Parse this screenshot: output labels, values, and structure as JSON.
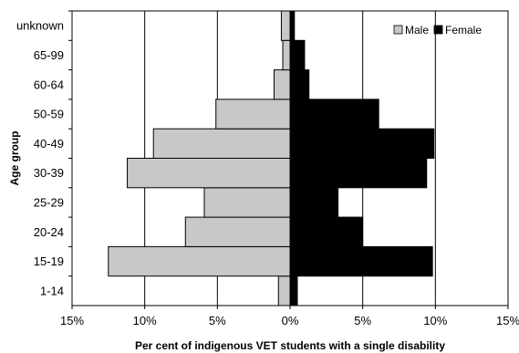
{
  "chart_data": {
    "type": "bar",
    "orientation": "horizontal-population-pyramid",
    "categories": [
      "1-14",
      "15-19",
      "20-24",
      "25-29",
      "30-39",
      "40-49",
      "50-59",
      "60-64",
      "65-99",
      "unknown"
    ],
    "series": [
      {
        "name": "Male",
        "values": [
          0.8,
          12.5,
          7.2,
          5.9,
          11.2,
          9.4,
          5.1,
          1.1,
          0.5,
          0.6
        ],
        "color": "#c8c8c8"
      },
      {
        "name": "Female",
        "values": [
          0.5,
          9.8,
          5.0,
          3.3,
          9.4,
          9.9,
          6.1,
          1.3,
          1.0,
          0.3
        ],
        "color": "#000000"
      }
    ],
    "xlabel": "Per cent of indigenous VET students with a single disability",
    "ylabel": "Age group",
    "xlim": [
      -15,
      15
    ],
    "xticks": [
      -15,
      -10,
      -5,
      0,
      5,
      10,
      15
    ],
    "xtick_labels": [
      "15%",
      "10%",
      "5%",
      "0%",
      "5%",
      "10%",
      "15%"
    ],
    "grid": "vertical",
    "legend_position": "top-right"
  }
}
